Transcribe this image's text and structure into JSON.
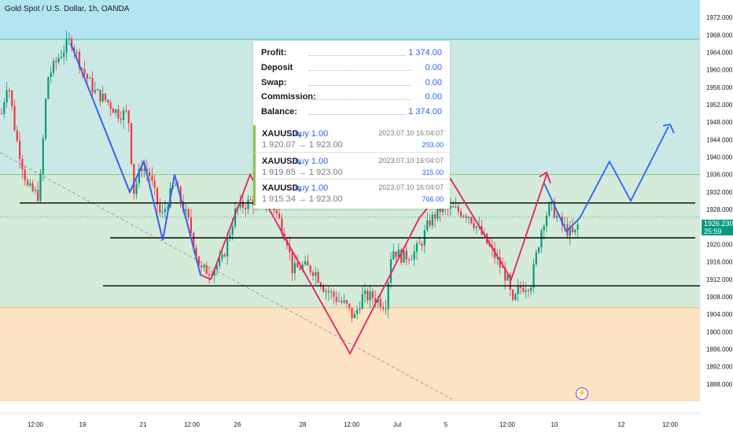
{
  "header": {
    "title": "Gold Spot / U.S. Dollar, 1h, OANDA"
  },
  "chart_data": {
    "type": "candlestick",
    "title": "Gold Spot / U.S. Dollar, 1h, OANDA",
    "ylim": [
      1884,
      1976
    ],
    "y_ticks": [
      1888,
      1892,
      1896,
      1900,
      1904,
      1908,
      1912,
      1916,
      1920,
      1924,
      1928,
      1932,
      1936,
      1940,
      1944,
      1948,
      1952,
      1956,
      1960,
      1964,
      1968,
      1972
    ],
    "y_tick_labels": [
      "1888.000",
      "1892.000",
      "1896.000",
      "1900.000",
      "1904.000",
      "1908.000",
      "1912.000",
      "1916.000",
      "1920.000",
      "1924.000",
      "1928.000",
      "1932.000",
      "1936.000",
      "1940.000",
      "1944.000",
      "1948.000",
      "1952.000",
      "1956.000",
      "1960.000",
      "1964.000",
      "1968.000",
      "1972.000"
    ],
    "x_ticks": [
      "12:00",
      "19",
      "21",
      "12:00",
      "26",
      "28",
      "12:00",
      "Jul",
      "5",
      "12:00",
      "10",
      "12",
      "12:00"
    ],
    "current_price": "1926.230",
    "countdown": "25:59",
    "zones": [
      {
        "from": 1967.0,
        "to": 1976.0,
        "color": "#b3e5f0"
      },
      {
        "from": 1936.0,
        "to": 1967.0,
        "color": "#cbe9e4"
      },
      {
        "from": 1905.5,
        "to": 1936.0,
        "color": "#d3ebd8"
      },
      {
        "from": 1884.0,
        "to": 1905.5,
        "color": "#fbe3c4"
      }
    ],
    "support_lines": [
      1929.5,
      1921.5,
      1910.5
    ]
  },
  "trade_panel": {
    "summary": [
      {
        "label": "Profit:",
        "value": "1 374.00"
      },
      {
        "label": "Deposit",
        "value": "0.00"
      },
      {
        "label": "Swap:",
        "value": "0.00"
      },
      {
        "label": "Commission:",
        "value": "0.00"
      },
      {
        "label": "Balance:",
        "value": "1 374.00"
      }
    ],
    "trades": [
      {
        "symbol": "XAUUSD,",
        "side": "buy 1.00",
        "time": "2023.07.10 16:04:07",
        "prices": "1 920.07 → 1 923.00",
        "profit": "293.00"
      },
      {
        "symbol": "XAUUSD,",
        "side": "buy 1.00",
        "time": "2023.07.10 16:04:07",
        "prices": "1 919.85 → 1 923.00",
        "profit": "315.00"
      },
      {
        "symbol": "XAUUSD,",
        "side": "buy 1.00",
        "time": "2023.07.10 16:04:07",
        "prices": "1 915.34 → 1 923.00",
        "profit": "766.00"
      }
    ]
  },
  "colors": {
    "up": "#089981",
    "down": "#f23645",
    "pattern_red": "#e91e63",
    "pattern_blue": "#2962ff",
    "accent": "#2962ff"
  }
}
